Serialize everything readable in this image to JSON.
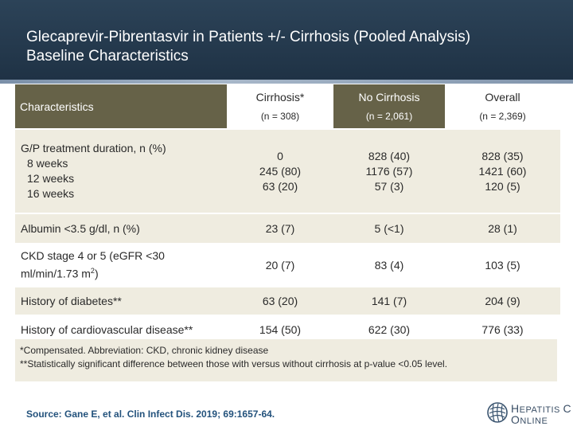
{
  "slide": {
    "title_line1": "Glecaprevir-Pibrentasvir in Patients +/- Cirrhosis (Pooled Analysis)",
    "title_line2": "Baseline Characteristics"
  },
  "table": {
    "header": {
      "label": "Characteristics",
      "columns": [
        {
          "name": "Cirrhosis*",
          "n": "(n = 308)"
        },
        {
          "name": "No Cirrhosis",
          "n": "(n = 2,061)"
        },
        {
          "name": "Overall",
          "n": "(n = 2,369)"
        }
      ]
    },
    "duration": {
      "label": "G/P treatment duration, n (%)",
      "sub": [
        "8 weeks",
        "12 weeks",
        "16 weeks"
      ],
      "values": [
        [
          "0",
          "245 (80)",
          "63 (20)"
        ],
        [
          "828 (40)",
          "1176 (57)",
          "57 (3)"
        ],
        [
          "828 (35)",
          "1421 (60)",
          "120 (5)"
        ]
      ]
    },
    "albumin": {
      "label": "Albumin <3.5 g/dl, n (%)",
      "values": [
        "23 (7)",
        "5 (<1)",
        "28 (1)"
      ]
    },
    "ckd": {
      "label_line1": "CKD stage 4 or 5 (eGFR <30",
      "label_line2_pre": "ml/min/1.73 m",
      "label_sup": "2",
      "label_line2_post": ")",
      "values": [
        "20 (7)",
        "83 (4)",
        "103 (5)"
      ]
    },
    "diabetes": {
      "label": "History of diabetes**",
      "values": [
        "63 (20)",
        "141 (7)",
        "204 (9)"
      ]
    },
    "cvd": {
      "label": "History of cardiovascular disease**",
      "values": [
        "154 (50)",
        "622 (30)",
        "776 (33)"
      ]
    }
  },
  "footnotes": [
    "*Compensated. Abbreviation: CKD, chronic kidney disease",
    "**Statistically significant difference between those with versus without cirrhosis at p-value <0.05 level."
  ],
  "source": "Source: Gane E, et al. Clin Infect Dis. 2019; 69:1657-64.",
  "logo": {
    "line1_big": "H",
    "line1_rest": "EPATITIS",
    "line1_end": "C",
    "line2_big": "O",
    "line2_rest": "NLINE"
  },
  "colors": {
    "header_bg": "#1f3245",
    "table_dark": "#666248",
    "row_shade": "#efece0",
    "source_text": "#23527c"
  }
}
